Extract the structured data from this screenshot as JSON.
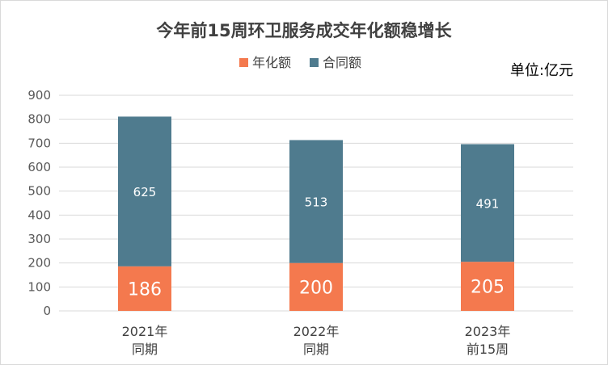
{
  "chart_data": {
    "type": "bar",
    "stacked": true,
    "title": "今年前15周环卫服务成交年化额稳增长",
    "unit_note": "单位:亿元",
    "categories": [
      [
        "2021年",
        "同期"
      ],
      [
        "2022年",
        "同期"
      ],
      [
        "2023年",
        "前15周"
      ]
    ],
    "series": [
      {
        "name": "年化额",
        "color": "#F4794E",
        "values": [
          186,
          200,
          205
        ]
      },
      {
        "name": "合同额",
        "color": "#4F7B8E",
        "values": [
          625,
          513,
          491
        ]
      }
    ],
    "ylim": [
      0,
      900
    ],
    "yticks": [
      0,
      100,
      200,
      300,
      400,
      500,
      600,
      700,
      800,
      900
    ],
    "grid": true,
    "legend_position": "top"
  }
}
